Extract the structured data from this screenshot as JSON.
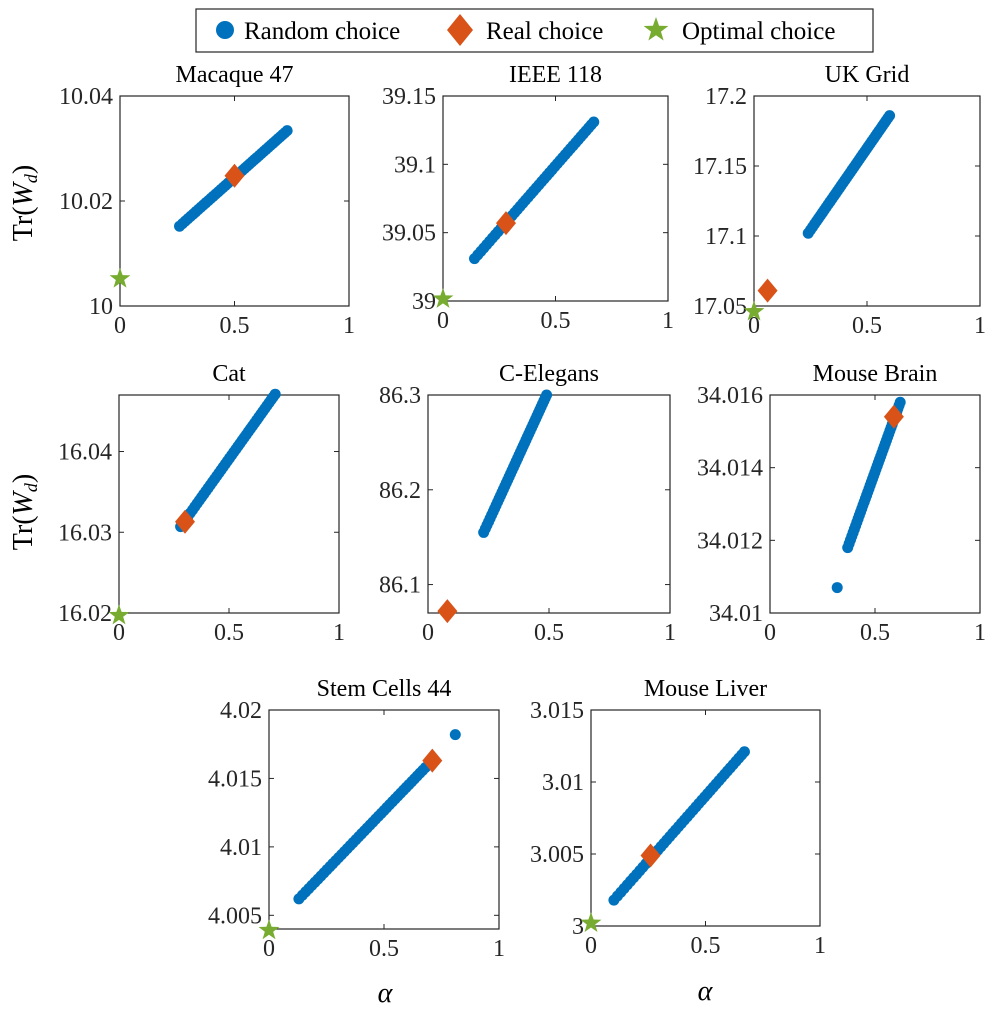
{
  "colors": {
    "random": "#0072BD",
    "real": "#D95319",
    "optimal": "#77AC30",
    "axis": "#262626"
  },
  "legend": {
    "random_label": "Random choice",
    "real_label": "Real choice",
    "optimal_label": "Optimal choice",
    "random_icon": "circle-marker-icon",
    "real_icon": "diamond-marker-icon",
    "optimal_icon": "star-marker-icon"
  },
  "labels": {
    "y_prefix": "Tr(",
    "y_var": "W",
    "y_sub": "d",
    "y_suffix": ")",
    "x_alpha": "α"
  },
  "chart_data": [
    {
      "type": "scatter",
      "title": "Macaque 47",
      "xlim": [
        0,
        1
      ],
      "ylim": [
        10,
        10.04
      ],
      "xticks": [
        "0",
        "0.5",
        "1"
      ],
      "yticks": [
        "10",
        "10.02",
        "10.04"
      ],
      "ytick_values": [
        10,
        10.02,
        10.04
      ],
      "random_range": {
        "x_start": 0.26,
        "y_start": 10.0152,
        "x_end": 0.73,
        "y_end": 10.0334
      },
      "real": {
        "x": 0.5,
        "y": 10.0248
      },
      "optimal": {
        "x": 0.0,
        "y": 10.0052
      }
    },
    {
      "type": "scatter",
      "title": "IEEE 118",
      "xlim": [
        0,
        1
      ],
      "ylim": [
        39,
        39.15
      ],
      "xticks": [
        "0",
        "0.5",
        "1"
      ],
      "yticks": [
        "39",
        "39.05",
        "39.1",
        "39.15"
      ],
      "ytick_values": [
        39,
        39.05,
        39.1,
        39.15
      ],
      "random_range": {
        "x_start": 0.14,
        "y_start": 39.031,
        "x_end": 0.67,
        "y_end": 39.131
      },
      "real": {
        "x": 0.28,
        "y": 39.057
      },
      "optimal": {
        "x": 0.0,
        "y": 39.0015
      }
    },
    {
      "type": "scatter",
      "title": "UK Grid",
      "xlim": [
        0,
        1
      ],
      "ylim": [
        17.05,
        17.2
      ],
      "xticks": [
        "0",
        "0.5",
        "1"
      ],
      "yticks": [
        "17.05",
        "17.1",
        "17.15",
        "17.2"
      ],
      "ytick_values": [
        17.05,
        17.1,
        17.15,
        17.2
      ],
      "random_range": {
        "x_start": 0.24,
        "y_start": 17.102,
        "x_end": 0.6,
        "y_end": 17.186
      },
      "real": {
        "x": 0.06,
        "y": 17.061
      },
      "optimal": {
        "x": 0.0,
        "y": 17.046
      }
    },
    {
      "type": "scatter",
      "title": "Cat",
      "xlim": [
        0,
        1
      ],
      "ylim": [
        16.02,
        16.047
      ],
      "xticks": [
        "0",
        "0.5",
        "1"
      ],
      "yticks": [
        "16.02",
        "16.03",
        "16.04"
      ],
      "ytick_values": [
        16.02,
        16.03,
        16.04
      ],
      "random_range": {
        "x_start": 0.28,
        "y_start": 16.0307,
        "x_end": 0.71,
        "y_end": 16.0471
      },
      "real": {
        "x": 0.3,
        "y": 16.0313
      },
      "optimal": {
        "x": 0.0,
        "y": 16.0197
      }
    },
    {
      "type": "scatter",
      "title": "C-Elegans",
      "xlim": [
        0,
        1
      ],
      "ylim": [
        86.07,
        86.3
      ],
      "xticks": [
        "0",
        "0.5",
        "1"
      ],
      "yticks": [
        "86.1",
        "86.2",
        "86.3"
      ],
      "ytick_values": [
        86.1,
        86.2,
        86.3
      ],
      "random_range": {
        "x_start": 0.23,
        "y_start": 86.155,
        "x_end": 0.49,
        "y_end": 86.3
      },
      "real": {
        "x": 0.08,
        "y": 86.072
      },
      "optimal": null
    },
    {
      "type": "scatter",
      "title": "Mouse Brain",
      "xlim": [
        0,
        1
      ],
      "ylim": [
        34.01,
        34.016
      ],
      "xticks": [
        "0",
        "0.5",
        "1"
      ],
      "yticks": [
        "34.01",
        "34.012",
        "34.014",
        "34.016"
      ],
      "ytick_values": [
        34.01,
        34.012,
        34.014,
        34.016
      ],
      "random_range": {
        "x_start": 0.37,
        "y_start": 34.0118,
        "x_end": 0.62,
        "y_end": 34.0158
      },
      "random_outliers": [
        {
          "x": 0.32,
          "y": 34.0107
        }
      ],
      "real": {
        "x": 0.59,
        "y": 34.0154
      },
      "optimal": null
    },
    {
      "type": "scatter",
      "title": "Stem Cells 44",
      "xlim": [
        0,
        1
      ],
      "ylim": [
        4.004,
        4.02
      ],
      "xticks": [
        "0",
        "0.5",
        "1"
      ],
      "yticks": [
        "4.005",
        "4.01",
        "4.015",
        "4.02"
      ],
      "ytick_values": [
        4.005,
        4.01,
        4.015,
        4.02
      ],
      "random_range": {
        "x_start": 0.13,
        "y_start": 4.0062,
        "x_end": 0.68,
        "y_end": 4.0158
      },
      "random_outliers": [
        {
          "x": 0.81,
          "y": 4.0182
        }
      ],
      "real": {
        "x": 0.71,
        "y": 4.0163
      },
      "optimal": {
        "x": 0.0,
        "y": 4.0039
      }
    },
    {
      "type": "scatter",
      "title": "Mouse Liver",
      "xlim": [
        0,
        1
      ],
      "ylim": [
        3,
        3.015
      ],
      "xticks": [
        "0",
        "0.5",
        "1"
      ],
      "yticks": [
        "3",
        "3.005",
        "3.01",
        "3.015"
      ],
      "ytick_values": [
        3,
        3.005,
        3.01,
        3.015
      ],
      "random_range": {
        "x_start": 0.1,
        "y_start": 3.0018,
        "x_end": 0.67,
        "y_end": 3.0121
      },
      "real": {
        "x": 0.26,
        "y": 3.0049
      },
      "optimal": {
        "x": 0.0,
        "y": 3.0002
      }
    }
  ]
}
